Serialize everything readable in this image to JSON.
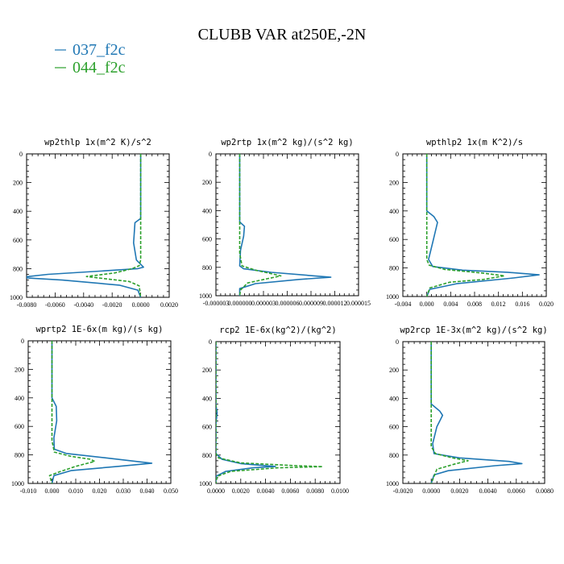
{
  "figure": {
    "title": "CLUBB VAR at250E,-2N",
    "colors": {
      "s037": "#1f77b4",
      "s044": "#2ca02c"
    }
  },
  "legend": [
    {
      "name": "037_f2c",
      "color": "#1f77b4",
      "dash": "solid"
    },
    {
      "name": "044_f2c",
      "color": "#2ca02c",
      "dash": "dashed"
    }
  ],
  "chart_data": [
    {
      "type": "line",
      "title": "wp2thlp   1x(m^2 K)/s^2",
      "xlim": [
        -0.008,
        0.002
      ],
      "ylim": [
        1000,
        0
      ],
      "xticks": [
        -0.008,
        -0.006,
        -0.004,
        -0.002,
        0.0,
        0.002
      ],
      "xtick_labels": [
        "-0.0080",
        "-0.0060",
        "-0.0040",
        "-0.0020",
        "0.0000",
        "0.0020"
      ],
      "yticks": [
        0,
        200,
        400,
        600,
        800,
        1000
      ],
      "ytick_labels": [
        "0",
        "200",
        "400",
        "600",
        "800",
        "1000"
      ],
      "series": [
        {
          "name": "037_f2c",
          "points": [
            [
              0,
              0
            ],
            [
              0,
              450
            ],
            [
              -0.0004,
              480
            ],
            [
              -0.0005,
              620
            ],
            [
              -0.0003,
              740
            ],
            [
              0.0002,
              790
            ],
            [
              -0.0002,
              800
            ],
            [
              -0.0025,
              815
            ],
            [
              -0.0065,
              840
            ],
            [
              -0.0085,
              862
            ],
            [
              -0.0055,
              880
            ],
            [
              -0.0015,
              915
            ],
            [
              -0.0002,
              950
            ],
            [
              0,
              1000
            ]
          ]
        },
        {
          "name": "044_f2c",
          "points": [
            [
              0,
              0
            ],
            [
              0,
              600
            ],
            [
              0,
              740
            ],
            [
              -0.0001,
              780
            ],
            [
              -0.0006,
              800
            ],
            [
              -0.0018,
              830
            ],
            [
              -0.0038,
              855
            ],
            [
              -0.0025,
              870
            ],
            [
              -0.0008,
              890
            ],
            [
              -0.0001,
              920
            ],
            [
              0,
              1000
            ]
          ]
        }
      ]
    },
    {
      "type": "line",
      "title": "wp2rtp   1x(m^2 kg)/(s^2 kg)",
      "xlim": [
        -3e-06,
        1.5e-05
      ],
      "ylim": [
        1000,
        0
      ],
      "xticks": [
        -3e-06,
        0.0,
        3e-06,
        6e-06,
        9e-06,
        1.2e-05,
        1.5e-05
      ],
      "xtick_labels": [
        "-0.000003",
        "0.000000",
        "0.000003",
        "0.000006",
        "0.000009",
        "0.000012",
        "0.000015"
      ],
      "yticks": [
        0,
        200,
        400,
        600,
        800,
        1000
      ],
      "ytick_labels": [
        "0",
        "200",
        "400",
        "600",
        "800",
        "1000"
      ],
      "series": [
        {
          "name": "037_f2c",
          "points": [
            [
              0,
              0
            ],
            [
              0,
              480
            ],
            [
              6e-07,
              510
            ],
            [
              5e-07,
              580
            ],
            [
              1e-07,
              680
            ],
            [
              0,
              790
            ],
            [
              5e-07,
              810
            ],
            [
              4e-06,
              835
            ],
            [
              1.15e-05,
              870
            ],
            [
              7.5e-06,
              885
            ],
            [
              2e-06,
              915
            ],
            [
              0,
              950
            ],
            [
              0,
              1000
            ]
          ]
        },
        {
          "name": "044_f2c",
          "points": [
            [
              0,
              0
            ],
            [
              0,
              700
            ],
            [
              3e-07,
              790
            ],
            [
              2e-06,
              820
            ],
            [
              5.2e-06,
              860
            ],
            [
              3.5e-06,
              880
            ],
            [
              1e-06,
              910
            ],
            [
              1e-07,
              960
            ],
            [
              0,
              1000
            ]
          ]
        }
      ]
    },
    {
      "type": "line",
      "title": "wpthlp2   1x(m K^2)/s",
      "xlim": [
        -0.004,
        0.02
      ],
      "ylim": [
        1000,
        0
      ],
      "xticks": [
        -0.004,
        0.0,
        0.004,
        0.008,
        0.012,
        0.016,
        0.02
      ],
      "xtick_labels": [
        "-0.004",
        "0.000",
        "0.004",
        "0.008",
        "0.012",
        "0.016",
        "0.020"
      ],
      "yticks": [
        0,
        200,
        400,
        600,
        800,
        1000
      ],
      "ytick_labels": [
        "0",
        "200",
        "400",
        "600",
        "800",
        "1000"
      ],
      "series": [
        {
          "name": "037_f2c",
          "points": [
            [
              0,
              0
            ],
            [
              0,
              400
            ],
            [
              0.0012,
              440
            ],
            [
              0.0018,
              480
            ],
            [
              0.001,
              620
            ],
            [
              0.0003,
              740
            ],
            [
              0.001,
              790
            ],
            [
              0.006,
              815
            ],
            [
              0.0135,
              830
            ],
            [
              0.0188,
              848
            ],
            [
              0.0145,
              870
            ],
            [
              0.005,
              910
            ],
            [
              0.0005,
              950
            ],
            [
              0,
              1000
            ]
          ]
        },
        {
          "name": "044_f2c",
          "points": [
            [
              0,
              0
            ],
            [
              0,
              740
            ],
            [
              0.0004,
              780
            ],
            [
              0.003,
              810
            ],
            [
              0.0092,
              835
            ],
            [
              0.013,
              855
            ],
            [
              0.0095,
              880
            ],
            [
              0.0038,
              900
            ],
            [
              0.0005,
              940
            ],
            [
              0,
              1000
            ]
          ]
        }
      ]
    },
    {
      "type": "line",
      "title": "wprtp2   1E-6x(m kg)/(s kg)",
      "xlim": [
        -0.01,
        0.05
      ],
      "ylim": [
        1000,
        0
      ],
      "xticks": [
        -0.01,
        0.0,
        0.01,
        0.02,
        0.03,
        0.04,
        0.05
      ],
      "xtick_labels": [
        "-0.010",
        "0.000",
        "0.010",
        "0.020",
        "0.030",
        "0.040",
        "0.050"
      ],
      "yticks": [
        0,
        200,
        400,
        600,
        800,
        1000
      ],
      "ytick_labels": [
        "0",
        "200",
        "400",
        "600",
        "800",
        "1000"
      ],
      "series": [
        {
          "name": "037_f2c",
          "points": [
            [
              0,
              0
            ],
            [
              0,
              400
            ],
            [
              0.0018,
              460
            ],
            [
              0.002,
              560
            ],
            [
              0.0008,
              680
            ],
            [
              0.001,
              760
            ],
            [
              0.006,
              790
            ],
            [
              0.022,
              820
            ],
            [
              0.042,
              858
            ],
            [
              0.028,
              880
            ],
            [
              0.008,
              910
            ],
            [
              0.0008,
              945
            ],
            [
              0,
              1000
            ]
          ]
        },
        {
          "name": "044_f2c",
          "points": [
            [
              0,
              0
            ],
            [
              0,
              700
            ],
            [
              0.001,
              780
            ],
            [
              0.008,
              810
            ],
            [
              0.016,
              830
            ],
            [
              0.018,
              845
            ],
            [
              0.01,
              880
            ],
            [
              0.003,
              920
            ],
            [
              -0.001,
              945
            ],
            [
              0,
              1000
            ]
          ]
        }
      ]
    },
    {
      "type": "line",
      "title": "rcp2   1E-6x(kg^2)/(kg^2)",
      "xlim": [
        0.0,
        0.01
      ],
      "ylim": [
        1000,
        0
      ],
      "xticks": [
        0.0,
        0.002,
        0.004,
        0.006,
        0.008,
        0.01
      ],
      "xtick_labels": [
        "0.0000",
        "0.0020",
        "0.0040",
        "0.0060",
        "0.0080",
        "0.0100"
      ],
      "yticks": [
        0,
        200,
        400,
        600,
        800,
        1000
      ],
      "ytick_labels": [
        "0",
        "200",
        "400",
        "600",
        "800",
        "1000"
      ],
      "series": [
        {
          "name": "037_f2c",
          "points": [
            [
              0,
              0
            ],
            [
              0,
              450
            ],
            [
              0.0001,
              500
            ],
            [
              0,
              580
            ],
            [
              0,
              790
            ],
            [
              0.0005,
              830
            ],
            [
              0.002,
              860
            ],
            [
              0.0048,
              880
            ],
            [
              0.003,
              890
            ],
            [
              0.0008,
              915
            ],
            [
              0,
              950
            ],
            [
              0,
              1000
            ]
          ]
        },
        {
          "name": "044_f2c",
          "points": [
            [
              0,
              0
            ],
            [
              0,
              790
            ],
            [
              0.0002,
              820
            ],
            [
              0.002,
              855
            ],
            [
              0.0065,
              875
            ],
            [
              0.0086,
              882
            ],
            [
              0.005,
              890
            ],
            [
              0.0012,
              915
            ],
            [
              0.0001,
              950
            ],
            [
              0,
              1000
            ]
          ]
        }
      ]
    },
    {
      "type": "line",
      "title": "wp2rcp   1E-3x(m^2 kg)/(s^2 kg)",
      "xlim": [
        -0.002,
        0.008
      ],
      "ylim": [
        1000,
        0
      ],
      "xticks": [
        -0.002,
        0.0,
        0.002,
        0.004,
        0.006,
        0.008
      ],
      "xtick_labels": [
        "-0.0020",
        "0.0000",
        "0.0020",
        "0.0040",
        "0.0060",
        "0.0080"
      ],
      "yticks": [
        0,
        200,
        400,
        600,
        800,
        1000
      ],
      "ytick_labels": [
        "0",
        "200",
        "400",
        "600",
        "800",
        "1000"
      ],
      "series": [
        {
          "name": "037_f2c",
          "points": [
            [
              0,
              0
            ],
            [
              0,
              440
            ],
            [
              0.0006,
              490
            ],
            [
              0.0008,
              520
            ],
            [
              0.0004,
              600
            ],
            [
              0.0001,
              720
            ],
            [
              0.0002,
              790
            ],
            [
              0.002,
              820
            ],
            [
              0.0055,
              845
            ],
            [
              0.0064,
              860
            ],
            [
              0.0045,
              875
            ],
            [
              0.0012,
              910
            ],
            [
              0.0002,
              940
            ],
            [
              0,
              1000
            ]
          ]
        },
        {
          "name": "044_f2c",
          "points": [
            [
              0,
              0
            ],
            [
              0,
              740
            ],
            [
              0.0003,
              790
            ],
            [
              0.0015,
              820
            ],
            [
              0.0026,
              840
            ],
            [
              0.0016,
              865
            ],
            [
              0.0004,
              900
            ],
            [
              0,
              1000
            ]
          ]
        }
      ]
    }
  ]
}
